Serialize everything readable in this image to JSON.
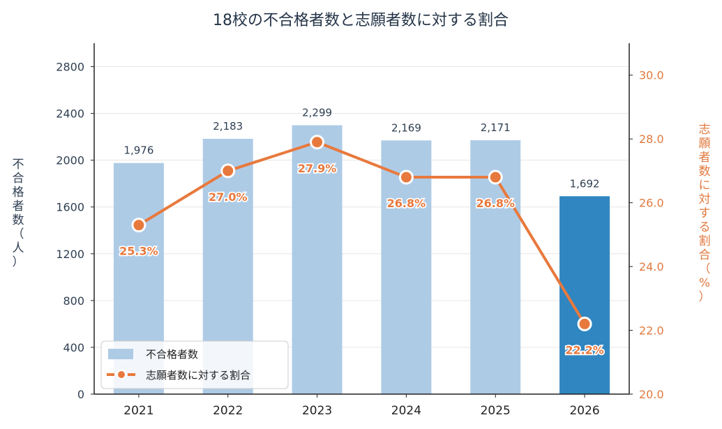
{
  "chart_data": {
    "type": "bar",
    "title": "18校の不合格者数と志願者数に対する割合",
    "categories": [
      "2021",
      "2022",
      "2023",
      "2024",
      "2025",
      "2026"
    ],
    "series": [
      {
        "name": "不合格者数",
        "type": "bar",
        "axis": "left",
        "values": [
          1976,
          2183,
          2299,
          2169,
          2171,
          1692
        ],
        "value_labels": [
          "1,976",
          "2,183",
          "2,299",
          "2,169",
          "2,171",
          "1,692"
        ],
        "colors": [
          "#aecbe6",
          "#aecbe6",
          "#aecbe6",
          "#aecbe6",
          "#aecbe6",
          "#2f86c0"
        ]
      },
      {
        "name": "志願者数に対する割合",
        "type": "line",
        "axis": "right",
        "values": [
          25.3,
          27.0,
          27.9,
          26.8,
          26.8,
          22.2
        ],
        "value_labels": [
          "25.3%",
          "27.0%",
          "27.9%",
          "26.8%",
          "26.8%",
          "22.2%"
        ],
        "color": "#e8793d"
      }
    ],
    "ylabel_left": "不合格者数（人）",
    "ylabel_right": "志願者数に対する割合（%）",
    "ylim_left": [
      0,
      3000
    ],
    "yticks_left": [
      0,
      400,
      800,
      1200,
      1600,
      2000,
      2400,
      2800
    ],
    "ylim_right": [
      20.0,
      31.0
    ],
    "yticks_right": [
      "20.0",
      "22.0",
      "24.0",
      "26.0",
      "28.0",
      "30.0"
    ],
    "grid": true,
    "legend_position": "bottom-left"
  }
}
